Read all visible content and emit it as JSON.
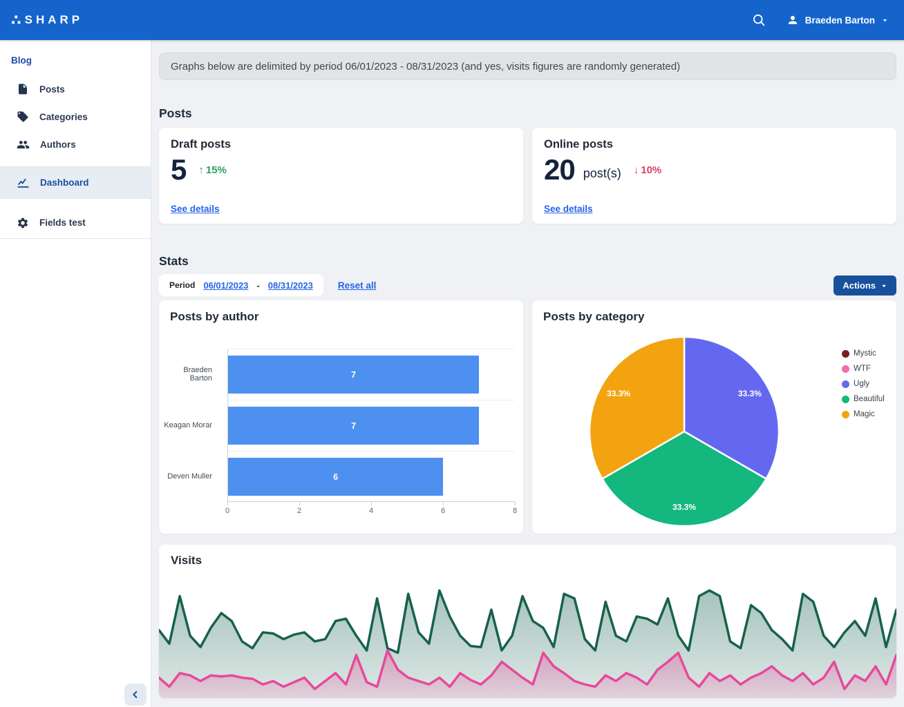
{
  "colors": {
    "navbar": "#1464cb",
    "accent": "#2563eb",
    "positive": "#2d9e5f",
    "negative": "#dd3d64",
    "actions_button": "#17519b"
  },
  "navbar": {
    "logo_mark": "∴",
    "logo_text": "SHARP",
    "user_name": "Braeden Barton"
  },
  "sidebar": {
    "section_label": "Blog",
    "items": [
      {
        "label": "Posts",
        "icon": "document-icon"
      },
      {
        "label": "Categories",
        "icon": "tag-icon"
      },
      {
        "label": "Authors",
        "icon": "users-icon"
      }
    ],
    "dashboard_label": "Dashboard",
    "fields_test_label": "Fields test"
  },
  "banner": {
    "text": "Graphs below are delimited by period 06/01/2023 - 08/31/2023 (and yes, visits figures are randomly generated)"
  },
  "posts": {
    "heading": "Posts",
    "draft": {
      "title": "Draft posts",
      "value": "5",
      "delta_arrow": "↑",
      "delta": "15%",
      "link": "See details"
    },
    "online": {
      "title": "Online posts",
      "value": "20",
      "suffix": "post(s)",
      "delta_arrow": "↓",
      "delta": "10%",
      "link": "See details"
    }
  },
  "stats": {
    "heading": "Stats",
    "period_label": "Period",
    "date_from": "06/01/2023",
    "date_separator": "-",
    "date_to": "08/31/2023",
    "reset_label": "Reset all",
    "actions_label": "Actions"
  },
  "chart_data": [
    {
      "id": "posts_by_author",
      "type": "bar",
      "orientation": "horizontal",
      "title": "Posts by author",
      "categories": [
        "Braeden Barton",
        "Keagan Morar",
        "Deven Muller"
      ],
      "values": [
        7,
        7,
        6
      ],
      "value_labels": [
        "7",
        "7",
        "6"
      ],
      "xlabel": "",
      "ylabel": "",
      "xlim": [
        0,
        8
      ],
      "xticks": [
        0,
        2,
        4,
        6,
        8
      ],
      "grid": "row-separators",
      "bar_color": "#4e90f0",
      "value_label_color": "#ffffff"
    },
    {
      "id": "posts_by_category",
      "type": "pie",
      "title": "Posts by category",
      "legend_position": "right",
      "slices": [
        {
          "label": "Mystic",
          "value": 0,
          "display": "",
          "color": "#7b1d1d"
        },
        {
          "label": "WTF",
          "value": 0,
          "display": "",
          "color": "#f06eae"
        },
        {
          "label": "Ugly",
          "value": 33.3,
          "display": "33.3%",
          "color": "#6468f0"
        },
        {
          "label": "Beautiful",
          "value": 33.3,
          "display": "33.3%",
          "color": "#14b77e"
        },
        {
          "label": "Magic",
          "value": 33.3,
          "display": "33.3%",
          "color": "#f2a30f"
        }
      ]
    },
    {
      "id": "visits",
      "type": "area",
      "title": "Visits",
      "ylim": [
        0,
        100
      ],
      "grid": "off",
      "series": [
        {
          "name": "visits-upper",
          "line_color": "#17614e",
          "values": [
            60,
            48,
            90,
            55,
            45,
            62,
            75,
            68,
            50,
            44,
            58,
            57,
            52,
            56,
            58,
            50,
            52,
            68,
            70,
            55,
            42,
            88,
            44,
            40,
            92,
            58,
            48,
            95,
            72,
            55,
            46,
            45,
            78,
            42,
            55,
            90,
            68,
            62,
            45,
            92,
            88,
            52,
            42,
            85,
            55,
            50,
            72,
            70,
            65,
            88,
            55,
            42,
            90,
            95,
            90,
            50,
            44,
            82,
            75,
            60,
            52,
            42,
            92,
            85,
            55,
            45,
            58,
            68,
            55,
            88,
            45,
            78
          ]
        },
        {
          "name": "visits-lower",
          "line_color": "#e8489b",
          "values": [
            18,
            10,
            22,
            20,
            15,
            20,
            19,
            20,
            18,
            17,
            12,
            15,
            10,
            14,
            18,
            8,
            15,
            22,
            12,
            38,
            14,
            10,
            42,
            25,
            18,
            15,
            12,
            18,
            10,
            22,
            16,
            12,
            20,
            32,
            25,
            18,
            12,
            40,
            28,
            22,
            15,
            12,
            10,
            20,
            15,
            22,
            18,
            12,
            25,
            32,
            40,
            18,
            10,
            22,
            15,
            20,
            12,
            18,
            22,
            28,
            20,
            15,
            22,
            12,
            18,
            32,
            8,
            20,
            15,
            28,
            12,
            38
          ]
        }
      ]
    }
  ]
}
